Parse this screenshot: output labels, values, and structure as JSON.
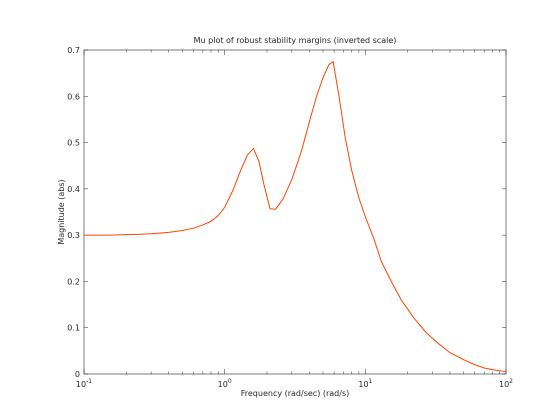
{
  "chart_data": {
    "type": "line",
    "title": "Mu plot of robust stability margins (inverted scale)",
    "xlabel": "Frequency (rad/sec)  (rad/s)",
    "ylabel": "Magnitude (abs)",
    "xscale": "log",
    "xlim": [
      0.1,
      100
    ],
    "ylim": [
      0,
      0.7
    ],
    "grid": false,
    "legend": "none",
    "x_ticks": [
      {
        "value": 0.1,
        "base": "10",
        "exp": "-1"
      },
      {
        "value": 1,
        "base": "10",
        "exp": "0"
      },
      {
        "value": 10,
        "base": "10",
        "exp": "1"
      },
      {
        "value": 100,
        "base": "10",
        "exp": "2"
      }
    ],
    "y_ticks": [
      "0",
      "0.1",
      "0.2",
      "0.3",
      "0.4",
      "0.5",
      "0.6",
      "0.7"
    ],
    "series": [
      {
        "color": "#ff4500",
        "x": [
          0.1,
          0.15,
          0.2,
          0.25,
          0.3,
          0.4,
          0.5,
          0.6,
          0.7,
          0.8,
          0.9,
          1.0,
          1.15,
          1.3,
          1.45,
          1.6,
          1.75,
          1.9,
          2.1,
          2.3,
          2.6,
          3.0,
          3.5,
          4.0,
          4.5,
          5.0,
          5.5,
          5.9,
          6.5,
          7.2,
          8.0,
          9.0,
          10,
          11.5,
          13,
          15,
          18,
          22,
          27,
          33,
          40,
          50,
          60,
          70,
          85,
          100
        ],
        "y": [
          0.3,
          0.3,
          0.301,
          0.302,
          0.303,
          0.306,
          0.31,
          0.315,
          0.322,
          0.33,
          0.342,
          0.36,
          0.398,
          0.44,
          0.473,
          0.487,
          0.46,
          0.41,
          0.357,
          0.356,
          0.378,
          0.42,
          0.48,
          0.545,
          0.6,
          0.64,
          0.668,
          0.675,
          0.6,
          0.51,
          0.44,
          0.38,
          0.34,
          0.292,
          0.243,
          0.205,
          0.16,
          0.122,
          0.09,
          0.066,
          0.046,
          0.031,
          0.02,
          0.013,
          0.008,
          0.005
        ]
      }
    ]
  }
}
